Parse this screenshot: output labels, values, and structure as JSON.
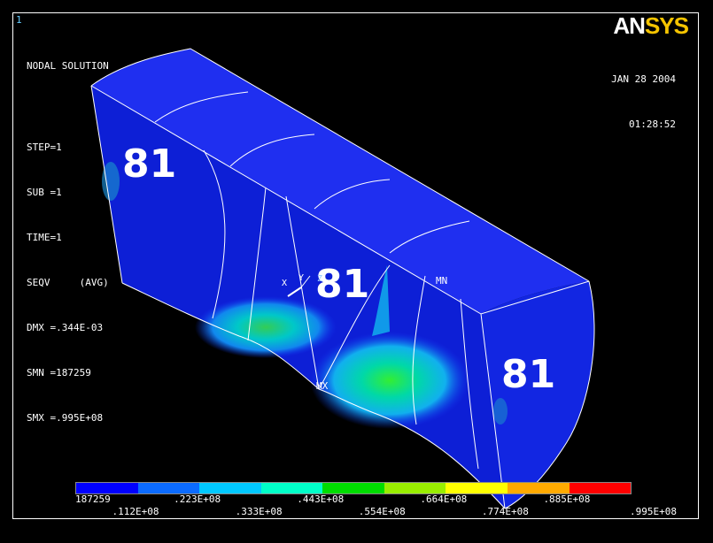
{
  "window_number": "1",
  "logo": {
    "part1": "AN",
    "part2": "SYS"
  },
  "info": {
    "title": "NODAL SOLUTION",
    "step": "STEP=1",
    "sub": "SUB =1",
    "time": "TIME=1",
    "seqv": "SEQV     (AVG)",
    "dmx": "DMX =.344E-03",
    "smn": "SMN =187259",
    "smx": "SMX =.995E+08"
  },
  "date": "JAN 28 2004",
  "time_of_day": "01:28:52",
  "model_labels": {
    "material_left": "81",
    "material_center": "81",
    "material_right": "81",
    "mn": "MN",
    "mx": "MX",
    "axis_x": "X",
    "axis_y": "Y",
    "axis_z": "Z"
  },
  "legend": {
    "colors": [
      "#0000ff",
      "#0b6bff",
      "#00c8ff",
      "#00ffc8",
      "#00dd00",
      "#99ee00",
      "#ffff00",
      "#ffaa00",
      "#ff0000"
    ],
    "ticks_top": [
      "187259",
      ".223E+08",
      ".443E+08",
      ".664E+08",
      ".885E+08"
    ],
    "ticks_bottom": [
      ".112E+08",
      ".333E+08",
      ".554E+08",
      ".774E+08",
      ".995E+08"
    ]
  }
}
